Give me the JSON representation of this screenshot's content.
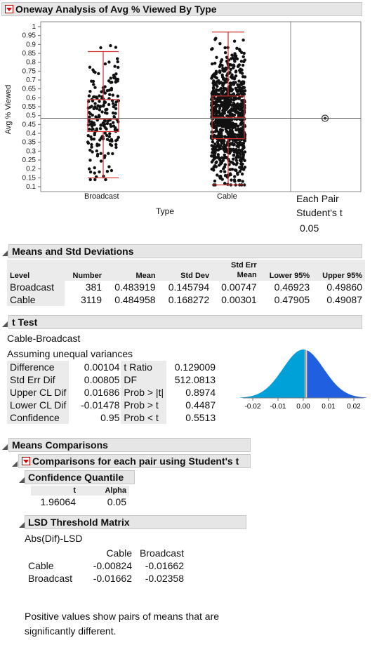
{
  "report_title": "Oneway Analysis of Avg % Viewed By Type",
  "plot": {
    "y_axis_label": "Avg % Viewed",
    "x_axis_label": "Type",
    "y_ticks": [
      "0.1",
      "0.15",
      "0.2",
      "0.25",
      "0.3",
      "0.35",
      "0.4",
      "0.45",
      "0.5",
      "0.55",
      "0.6",
      "0.65",
      "0.7",
      "0.75",
      "0.8",
      "0.85",
      "0.9",
      "0.95",
      "1"
    ],
    "categories": [
      "Broadcast",
      "Cable"
    ],
    "grand_mean": 0.4848,
    "compare_title": "Each Pair",
    "compare_method": "Student's t",
    "compare_alpha": "0.05"
  },
  "means_std": {
    "title": "Means and Std Deviations",
    "headers": [
      "Level",
      "Number",
      "Mean",
      "Std Dev",
      "Std Err Mean",
      "Lower 95%",
      "Upper 95%"
    ],
    "header_std_err_top": "Std Err",
    "header_std_err_bottom": "Mean",
    "rows": [
      [
        "Broadcast",
        "381",
        "0.483919",
        "0.145794",
        "0.00747",
        "0.46923",
        "0.49860"
      ],
      [
        "Cable",
        "3119",
        "0.484958",
        "0.168272",
        "0.00301",
        "0.47905",
        "0.49087"
      ]
    ]
  },
  "t_test": {
    "title": "t Test",
    "comparison": "Cable-Broadcast",
    "assumption": "Assuming unequal variances",
    "left_rows": [
      [
        "Difference",
        "0.00104"
      ],
      [
        "Std Err Dif",
        "0.00805"
      ],
      [
        "Upper CL Dif",
        "0.01686"
      ],
      [
        "Lower CL Dif",
        "-0.01478"
      ],
      [
        "Confidence",
        "0.95"
      ]
    ],
    "right_rows": [
      [
        "t Ratio",
        "0.129009"
      ],
      [
        "DF",
        "512.0813"
      ],
      [
        "Prob > |t|",
        "0.8974"
      ],
      [
        "Prob > t",
        "0.4487"
      ],
      [
        "Prob < t",
        "0.5513"
      ]
    ],
    "axis_ticks": [
      "-0.02",
      "-0.01",
      "0.00",
      "0.01",
      "0.02"
    ]
  },
  "means_comparisons": {
    "title": "Means Comparisons",
    "pair_title": "Comparisons for each pair using Student's t",
    "quantile_title": "Confidence Quantile",
    "quantile_headers": [
      "t",
      "Alpha"
    ],
    "quantile_values": [
      "1.96064",
      "0.05"
    ],
    "lsd_title": "LSD Threshold Matrix",
    "lsd_subtitle": "Abs(Dif)-LSD",
    "lsd_cols": [
      "Cable",
      "Broadcast"
    ],
    "lsd_rows": [
      [
        "Cable",
        "-0.00824",
        "-0.01662"
      ],
      [
        "Broadcast",
        "-0.01662",
        "-0.02358"
      ]
    ],
    "note_line1": "Positive values show pairs of means that are",
    "note_line2": "significantly different."
  },
  "colors": {
    "box": "#d03030",
    "curve_light": "#00a0d8",
    "curve_dark": "#2060e0"
  }
}
